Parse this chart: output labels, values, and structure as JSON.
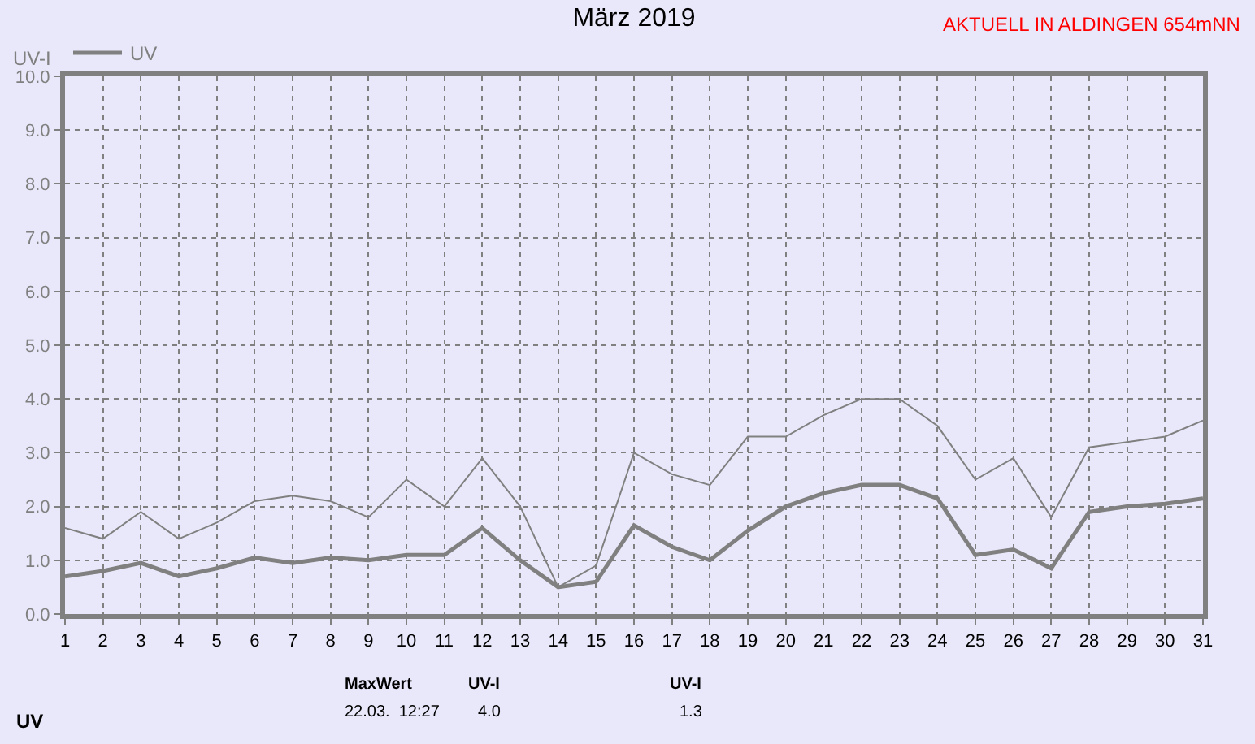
{
  "chart_data": {
    "type": "line",
    "title": "März 2019",
    "ylabel": "UV-I",
    "x": [
      1,
      2,
      3,
      4,
      5,
      6,
      7,
      8,
      9,
      10,
      11,
      12,
      13,
      14,
      15,
      16,
      17,
      18,
      19,
      20,
      21,
      22,
      23,
      24,
      25,
      26,
      27,
      28,
      29,
      30,
      31
    ],
    "series": [
      {
        "name": "UV",
        "color": "#808080",
        "values": [
          0.7,
          0.8,
          0.95,
          0.7,
          0.85,
          1.05,
          0.95,
          1.05,
          1.0,
          1.1,
          1.1,
          1.6,
          1.0,
          0.5,
          0.6,
          1.65,
          1.25,
          1.0,
          1.55,
          2.0,
          2.25,
          2.4,
          2.4,
          2.15,
          1.1,
          1.2,
          0.85,
          1.9,
          2.0,
          2.05,
          2.15
        ]
      },
      {
        "color": "#808080",
        "values": [
          1.6,
          1.4,
          1.9,
          1.4,
          1.7,
          2.1,
          2.2,
          2.1,
          1.8,
          2.5,
          2.0,
          2.9,
          2.0,
          0.5,
          0.9,
          3.0,
          2.6,
          2.4,
          3.3,
          3.3,
          3.7,
          4.0,
          4.0,
          3.5,
          2.5,
          2.9,
          1.8,
          3.1,
          3.2,
          3.3,
          3.6
        ]
      }
    ],
    "xlim": [
      1,
      31
    ],
    "xticks": [
      1,
      2,
      3,
      4,
      5,
      6,
      7,
      8,
      9,
      10,
      11,
      12,
      13,
      14,
      15,
      16,
      17,
      18,
      19,
      20,
      21,
      22,
      23,
      24,
      25,
      26,
      27,
      28,
      29,
      30,
      31
    ],
    "ylim": [
      0,
      10
    ],
    "yticks": [
      {
        "value": 0,
        "label": "0.0"
      },
      {
        "value": 1,
        "label": "1.0"
      },
      {
        "value": 2,
        "label": "2.0"
      },
      {
        "value": 3,
        "label": "3.0"
      },
      {
        "value": 4,
        "label": "4.0"
      },
      {
        "value": 5,
        "label": "5.0"
      },
      {
        "value": 6,
        "label": "6.0"
      },
      {
        "value": 7,
        "label": "7.0"
      },
      {
        "value": 8,
        "label": "8.0"
      },
      {
        "value": 9,
        "label": "9.0"
      },
      {
        "value": 10,
        "label": "10.0"
      }
    ],
    "grid": true,
    "legend": "top left",
    "marker": "none",
    "line_style": "solid",
    "annotations": [
      "AKTUELL IN ALDINGEN 654mNN",
      "UV",
      "MaxWert",
      "UV-I",
      "22.03.  12:27",
      "4.0",
      "UV-I",
      "1.3"
    ]
  }
}
